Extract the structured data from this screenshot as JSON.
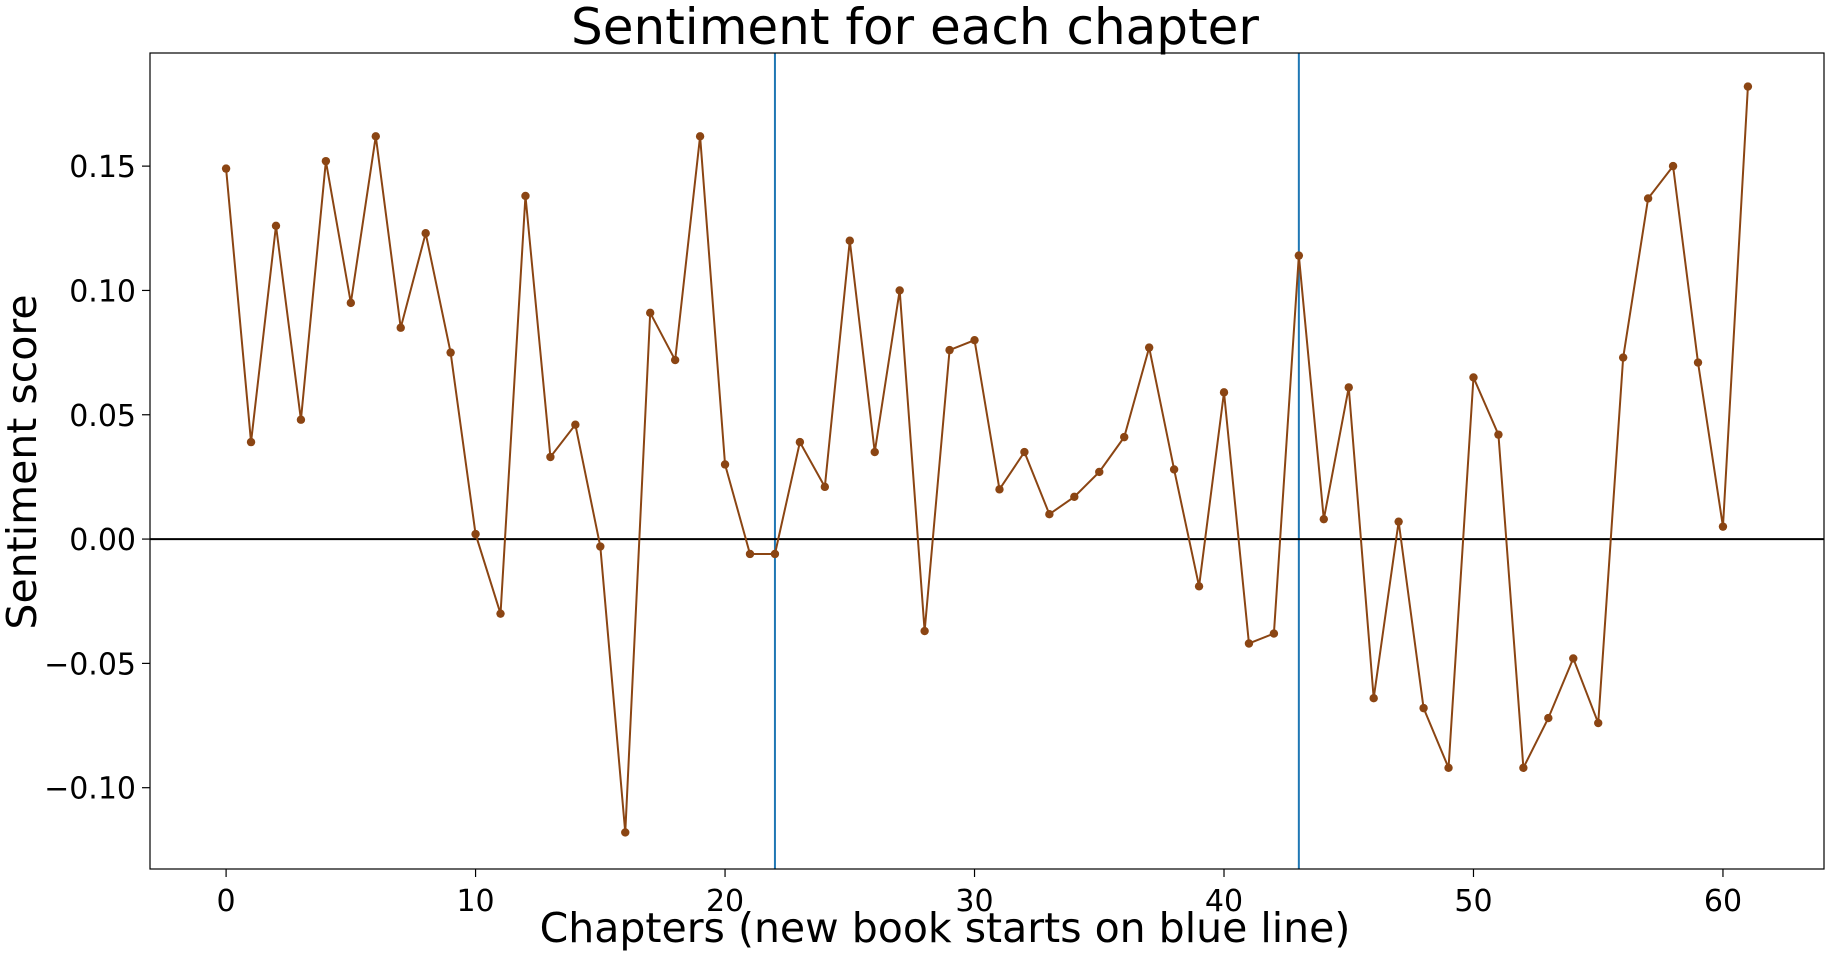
{
  "chart_data": {
    "type": "line",
    "title": "Sentiment for each chapter",
    "xlabel": "Chapters (new book starts on blue line)",
    "ylabel": "Sentiment score",
    "xlim": [
      -3.05,
      64.05
    ],
    "ylim": [
      -0.1327,
      0.1955
    ],
    "x_ticks": [
      0,
      10,
      20,
      30,
      40,
      50,
      60
    ],
    "x_tick_labels": [
      "0",
      "10",
      "20",
      "30",
      "40",
      "50",
      "60"
    ],
    "y_ticks": [
      -0.1,
      -0.05,
      0.0,
      0.05,
      0.1,
      0.15
    ],
    "y_tick_labels": [
      "−0.10",
      "−0.05",
      "0.00",
      "0.05",
      "0.10",
      "0.15"
    ],
    "grid": false,
    "series": [
      {
        "color": "#8b4513",
        "x": [
          0,
          1,
          2,
          3,
          4,
          5,
          6,
          7,
          8,
          9,
          10,
          11,
          12,
          13,
          14,
          15,
          16,
          17,
          18,
          19,
          20,
          21,
          22,
          23,
          24,
          25,
          26,
          27,
          28,
          29,
          30,
          31,
          32,
          33,
          34,
          35,
          36,
          37,
          38,
          39,
          40,
          41,
          42,
          43,
          44,
          45,
          46,
          47,
          48,
          49,
          50,
          51,
          52,
          53,
          54,
          55,
          56,
          57,
          58,
          59,
          60,
          61
        ],
        "values": [
          0.149,
          0.039,
          0.126,
          0.048,
          0.152,
          0.095,
          0.162,
          0.085,
          0.123,
          0.075,
          0.002,
          -0.03,
          0.138,
          0.033,
          0.046,
          -0.003,
          -0.118,
          0.091,
          0.072,
          0.162,
          0.03,
          -0.006,
          -0.006,
          0.039,
          0.021,
          0.12,
          0.035,
          0.1,
          -0.037,
          0.076,
          0.08,
          0.02,
          0.035,
          0.01,
          0.017,
          0.027,
          0.041,
          0.077,
          0.028,
          -0.019,
          0.059,
          -0.042,
          -0.038,
          0.114,
          0.008,
          0.061,
          -0.064,
          0.007,
          -0.068,
          -0.092,
          0.065,
          0.042,
          -0.092,
          -0.072,
          -0.048,
          -0.074,
          0.073,
          0.137,
          0.15,
          0.071,
          0.005,
          0.182
        ]
      }
    ],
    "reference_lines": {
      "vertical": [
        22,
        43
      ],
      "vertical_color": "#1f77b4",
      "horizontal": [
        0
      ],
      "horizontal_color": "#000000"
    }
  }
}
